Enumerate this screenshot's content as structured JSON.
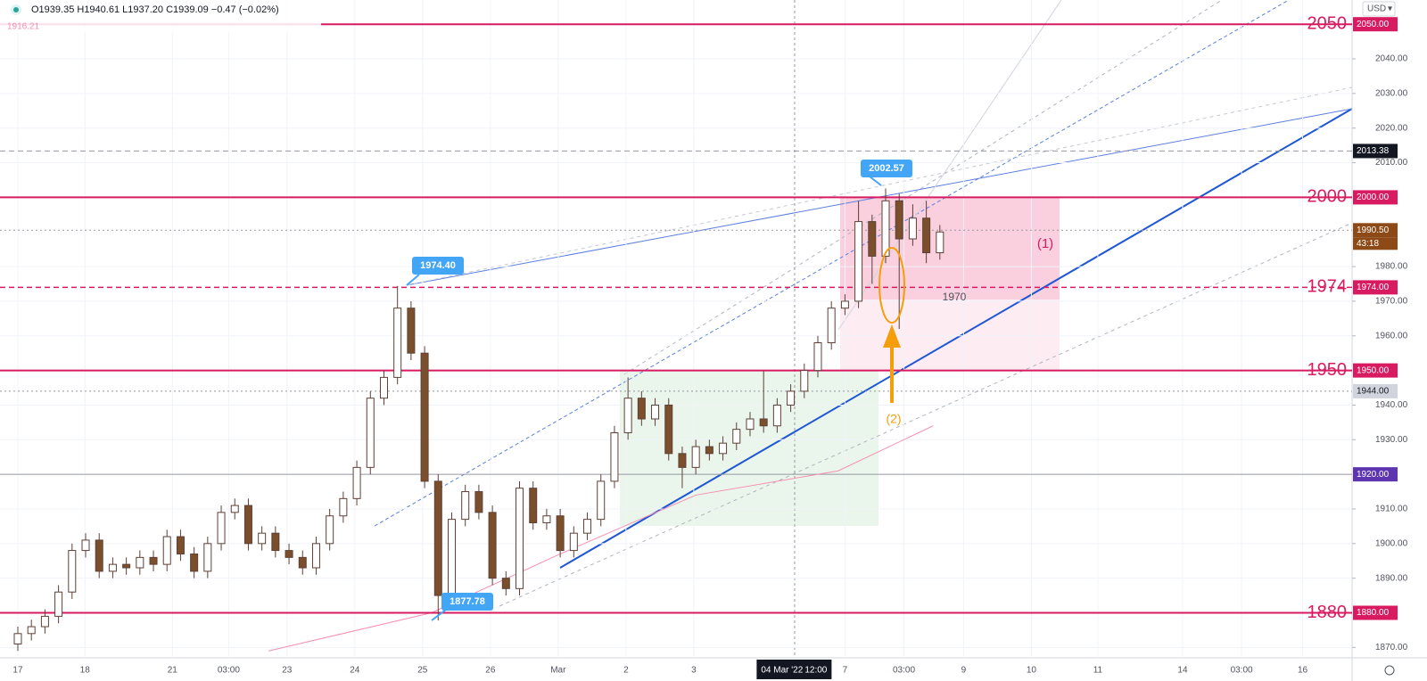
{
  "chart_data": {
    "type": "candlestick",
    "header": "O1939.35 H1940.61 L1937.20 C1939.09 −0.47 (−0.02%)",
    "subheader": "1916.21",
    "currency": "USD",
    "x": [
      0,
      0.2,
      0.4,
      0.6,
      0.8,
      1.0,
      1.2,
      1.4,
      1.6,
      1.8,
      2.0,
      2.2,
      2.4,
      2.6,
      2.8,
      3.0,
      3.2,
      3.4,
      3.6,
      3.8,
      4.0,
      4.2,
      4.4,
      4.6,
      4.8,
      5.0,
      5.2,
      5.4,
      5.6,
      5.8,
      6.0,
      6.2,
      6.4,
      6.6,
      6.8,
      7.0,
      7.2,
      7.4,
      7.6,
      7.8,
      8.0,
      8.2,
      8.4,
      8.6,
      8.8,
      9.0,
      9.2,
      9.4,
      9.6,
      9.8,
      10.0,
      10.2,
      10.4,
      10.6,
      10.8,
      11.0,
      11.2,
      11.4,
      11.6,
      11.8,
      12.0,
      12.2,
      12.4,
      12.6,
      12.8,
      13.0,
      13.2,
      13.4,
      13.6
    ],
    "open": [
      1871,
      1874,
      1876,
      1879,
      1886,
      1898,
      1901,
      1892,
      1894,
      1893,
      1896,
      1894,
      1902,
      1897,
      1892,
      1900,
      1909,
      1911,
      1900,
      1903,
      1898,
      1896,
      1893,
      1900,
      1908,
      1913,
      1922,
      1942,
      1948,
      1968,
      1955,
      1918,
      1885,
      1907,
      1915,
      1909,
      1890,
      1887,
      1916,
      1906,
      1908,
      1898,
      1903,
      1907,
      1918,
      1932,
      1942,
      1936,
      1940,
      1926,
      1922,
      1928,
      1926,
      1929,
      1933,
      1936,
      1934,
      1940,
      1944,
      1950,
      1958,
      1968,
      1970,
      1993,
      1983,
      1999,
      1988,
      1994,
      1984
    ],
    "high": [
      1876,
      1878,
      1881,
      1888,
      1900,
      1903,
      1903,
      1896,
      1896,
      1898,
      1898,
      1904,
      1904,
      1899,
      1902,
      1911,
      1913,
      1913,
      1905,
      1905,
      1900,
      1898,
      1902,
      1910,
      1915,
      1924,
      1944,
      1950,
      1974.4,
      1970,
      1957,
      1920,
      1909,
      1917,
      1917,
      1911,
      1892,
      1918,
      1918,
      1910,
      1910,
      1905,
      1909,
      1920,
      1934,
      1948,
      1944,
      1942,
      1942,
      1928,
      1930,
      1930,
      1931,
      1935,
      1938,
      1950,
      1942,
      1946,
      1952,
      1960,
      1970,
      1972,
      1999,
      1995,
      2002.57,
      2001,
      1998,
      1999,
      1992
    ],
    "low": [
      1869,
      1872,
      1874,
      1877,
      1884,
      1896,
      1890,
      1890,
      1891,
      1891,
      1892,
      1892,
      1895,
      1890,
      1890,
      1898,
      1907,
      1898,
      1898,
      1896,
      1894,
      1891,
      1891,
      1898,
      1906,
      1911,
      1920,
      1940,
      1946,
      1953,
      1916,
      1877.78,
      1883,
      1905,
      1907,
      1888,
      1885,
      1885,
      1904,
      1904,
      1896,
      1896,
      1901,
      1905,
      1916,
      1930,
      1934,
      1934,
      1924,
      1916,
      1920,
      1924,
      1924,
      1927,
      1931,
      1932,
      1932,
      1938,
      1942,
      1948,
      1956,
      1966,
      1968,
      1975,
      1981,
      1962,
      1986,
      1981,
      1982
    ],
    "close": [
      1874,
      1876,
      1879,
      1886,
      1898,
      1901,
      1892,
      1894,
      1893,
      1896,
      1894,
      1902,
      1897,
      1892,
      1900,
      1909,
      1911,
      1900,
      1903,
      1898,
      1896,
      1893,
      1900,
      1908,
      1913,
      1922,
      1942,
      1948,
      1968,
      1955,
      1918,
      1885,
      1907,
      1915,
      1909,
      1890,
      1887,
      1916,
      1906,
      1908,
      1898,
      1903,
      1907,
      1918,
      1932,
      1942,
      1936,
      1940,
      1926,
      1922,
      1928,
      1926,
      1929,
      1933,
      1936,
      1934,
      1940,
      1944,
      1950,
      1958,
      1968,
      1970,
      1993,
      1983,
      1999,
      1988,
      1994,
      1984,
      1990
    ],
    "up_color": "#ffffff",
    "down_color": "#7b4f2c",
    "wick_color": "#5d4037",
    "ma": {
      "x": [
        3.7,
        6.1,
        8.0,
        10.0,
        12.1,
        13.5
      ],
      "values": [
        1869,
        1880,
        1897,
        1914,
        1921,
        1934
      ],
      "color": "#f48fb1"
    },
    "xlim": [
      -0.263,
      19.68
    ],
    "ylim": [
      1867,
      2057
    ],
    "xticks": [
      {
        "value": 0,
        "label": "17"
      },
      {
        "value": 0.99,
        "label": "18"
      },
      {
        "value": 2.28,
        "label": "21"
      },
      {
        "value": 3.11,
        "label": "03:00"
      },
      {
        "value": 3.97,
        "label": "23"
      },
      {
        "value": 4.97,
        "label": "24"
      },
      {
        "value": 5.97,
        "label": "25"
      },
      {
        "value": 6.97,
        "label": "26"
      },
      {
        "value": 7.97,
        "label": "Mar"
      },
      {
        "value": 8.97,
        "label": "2"
      },
      {
        "value": 9.97,
        "label": "3"
      },
      {
        "value": 12.2,
        "label": "7"
      },
      {
        "value": 13.07,
        "label": "03:00"
      },
      {
        "value": 13.95,
        "label": "9"
      },
      {
        "value": 14.95,
        "label": "10"
      },
      {
        "value": 15.93,
        "label": "11"
      },
      {
        "value": 17.18,
        "label": "14"
      },
      {
        "value": 18.05,
        "label": "03:00"
      },
      {
        "value": 18.95,
        "label": "16"
      }
    ],
    "crosshair": {
      "x": 11.45,
      "label": "04 Mar '22",
      "time": "12:00"
    },
    "yticks": [
      {
        "value": 1870,
        "label": "1870.00"
      },
      {
        "value": 1890,
        "label": "1890.00"
      },
      {
        "value": 1900,
        "label": "1900.00"
      },
      {
        "value": 1910,
        "label": "1910.00"
      },
      {
        "value": 1930,
        "label": "1930.00"
      },
      {
        "value": 1940,
        "label": "1940.00"
      },
      {
        "value": 1960,
        "label": "1960.00"
      },
      {
        "value": 1970,
        "label": "1970.00"
      },
      {
        "value": 1980,
        "label": "1980.00"
      },
      {
        "value": 2010,
        "label": "2010.00"
      },
      {
        "value": 2020,
        "label": "2020.00"
      },
      {
        "value": 2030,
        "label": "2030.00"
      },
      {
        "value": 2040,
        "label": "2040.00"
      }
    ],
    "levels": [
      {
        "value": 2050,
        "label": "2050",
        "tag": "2050.00",
        "style": "solid"
      },
      {
        "value": 2000,
        "label": "2000",
        "tag": "2000.00",
        "style": "solid"
      },
      {
        "value": 1974,
        "label": "1974",
        "tag": "1974.00",
        "style": "dashed"
      },
      {
        "value": 1950,
        "label": "1950",
        "tag": "1950.00",
        "style": "solid"
      },
      {
        "value": 1880,
        "label": "1880",
        "tag": "1880.00",
        "style": "solid"
      }
    ],
    "level_color": "#d81b60",
    "price_lines": [
      {
        "value": 2013.38,
        "tag": "2013.38",
        "style": "dashed",
        "color": "#131722",
        "text_color": "#ffffff"
      },
      {
        "value": 1990.5,
        "tag": "1990.50",
        "sub": "43:18",
        "style": "dotted",
        "color": "#8d4a17",
        "text_color": "#ffffff"
      },
      {
        "value": 1944,
        "tag": "1944.00",
        "style": "dotted",
        "color": "#d1d4dc",
        "text_color": "#131722"
      },
      {
        "value": 1920,
        "tag": "1920.00",
        "style": "solid",
        "color": "#5e35b1",
        "text_color": "#ffffff"
      }
    ],
    "callouts": [
      "1974.40",
      "2002.57",
      "1877.78"
    ],
    "annotations": [
      "(1)",
      "(2)",
      "1970"
    ]
  }
}
